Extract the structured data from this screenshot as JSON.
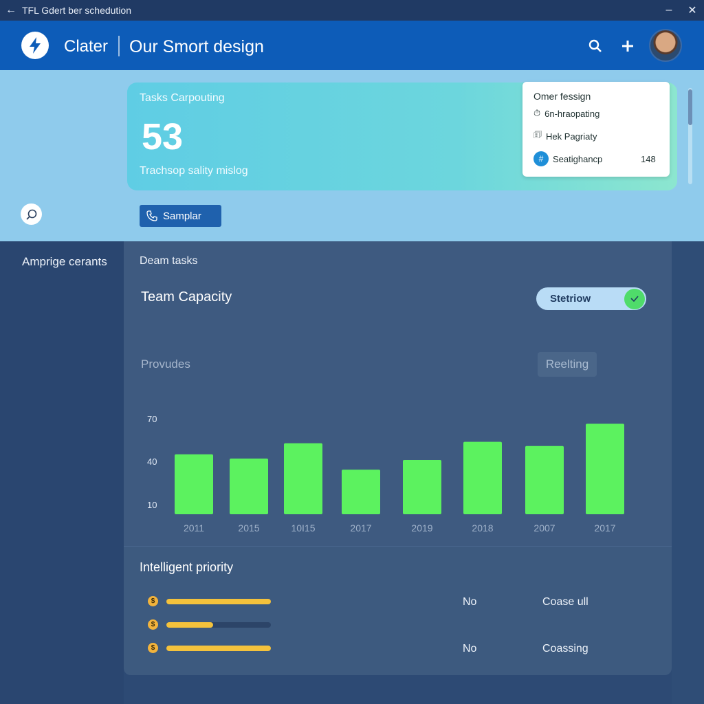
{
  "window": {
    "title": "TFL Gdert ber schedution",
    "back_icon": "back-arrow-icon",
    "minimize_icon": "minimize-icon",
    "close_icon": "close-icon"
  },
  "header": {
    "brand": "Clater",
    "title": "Our Smort design",
    "icons": [
      "search-icon",
      "plus-icon"
    ],
    "logo_icon": "bolt-icon"
  },
  "hero": {
    "label": "Tasks Carpouting",
    "value": "53",
    "subtitle": "Trachsop sality mislog"
  },
  "popup": {
    "title": "Omer fessign",
    "items": [
      {
        "icon": "clock-icon",
        "label": "6n-hraopating"
      },
      {
        "icon": "document-icon",
        "label": "Hek Pagriaty"
      },
      {
        "icon": "hash-icon",
        "label": "Seatighancp",
        "value": "148"
      }
    ]
  },
  "sample_button": {
    "label": "Samplar",
    "icon": "phone-icon"
  },
  "sidebar": {
    "label": "Amprige cerants"
  },
  "main": {
    "section_label": "Deam tasks",
    "chart_title": "Team Capacity",
    "toggle_label": "Stetriow",
    "provides_label": "Provudes",
    "realting_label": "Reelting"
  },
  "chart_data": {
    "type": "bar",
    "categories": [
      "2011",
      "2015",
      "10I15",
      "2017",
      "2019",
      "2018",
      "2007",
      "2017"
    ],
    "values": [
      43,
      40,
      51,
      32,
      39,
      52,
      49,
      65
    ],
    "yticks": [
      70,
      40,
      10
    ],
    "ylim": [
      0,
      78
    ],
    "color": "#5cf25f"
  },
  "priority": {
    "title": "Intelligent priority",
    "rows": [
      {
        "progress": 1.0,
        "col1": "No",
        "col2": "Coase ull"
      },
      {
        "progress": 0.45,
        "col1": "",
        "col2": ""
      },
      {
        "progress": 1.0,
        "col1": "No",
        "col2": "Coassing"
      }
    ]
  }
}
